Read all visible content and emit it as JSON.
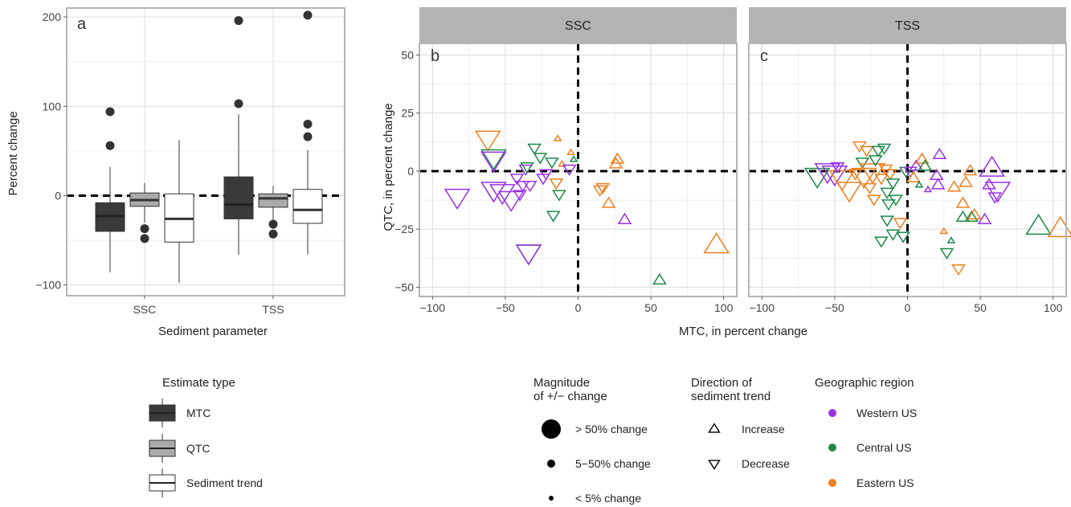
{
  "chart_data": [
    {
      "type": "box",
      "panel_letter": "a",
      "xlabel": "Sediment parameter",
      "ylabel": "Percent change",
      "categories": [
        "SSC",
        "TSS"
      ],
      "yticks": [
        -100,
        0,
        100,
        200
      ],
      "ylim": [
        -112,
        210
      ],
      "series": [
        {
          "name": "MTC",
          "boxes": [
            {
              "category": "SSC",
              "min": -86,
              "q1": -40,
              "median": -23,
              "q3": -8,
              "max": 32,
              "outliers": [
                94,
                56
              ]
            },
            {
              "category": "TSS",
              "min": -66,
              "q1": -26,
              "median": -10,
              "q3": 21,
              "max": 91,
              "outliers": [
                196,
                103
              ]
            }
          ]
        },
        {
          "name": "QTC",
          "boxes": [
            {
              "category": "SSC",
              "min": -30,
              "q1": -12,
              "median": -5,
              "q3": 3,
              "max": 14,
              "outliers": [
                -37,
                -48
              ]
            },
            {
              "category": "TSS",
              "min": -28,
              "q1": -13,
              "median": -3,
              "q3": 2,
              "max": 11,
              "outliers": [
                -32,
                -43
              ]
            }
          ]
        },
        {
          "name": "Sediment trend",
          "boxes": [
            {
              "category": "SSC",
              "min": -98,
              "q1": -52,
              "median": -26,
              "q3": 2,
              "max": 62,
              "outliers": []
            },
            {
              "category": "TSS",
              "min": -66,
              "q1": -31,
              "median": -16,
              "q3": 7,
              "max": 51,
              "outliers": [
                202,
                80,
                66
              ]
            }
          ]
        }
      ],
      "reference_line": 0,
      "fill_colors": {
        "MTC": "#3a3a3a",
        "QTC": "#aaaaaa",
        "Sediment trend": "#ffffff"
      }
    },
    {
      "type": "scatter",
      "panels": [
        {
          "letter": "b",
          "strip_title": "SSC"
        },
        {
          "letter": "c",
          "strip_title": "TSS"
        }
      ],
      "xlabel": "MTC, in percent change",
      "ylabel": "QTC, in percent change",
      "xticks": [
        -100,
        -50,
        0,
        50,
        100
      ],
      "yticks": [
        -50,
        -25,
        0,
        25,
        50
      ],
      "xlim": [
        -109,
        109
      ],
      "ylim": [
        -54,
        55
      ],
      "reference_lines": {
        "x": 0,
        "y": 0
      },
      "region_colors": {
        "Western US": "#9b30e8",
        "Central US": "#1b8a4a",
        "Eastern US": "#f07f1d"
      },
      "points": {
        "SSC": [
          {
            "x": -62,
            "y": 14,
            "dir": "down",
            "region": "Eastern US",
            "size": "large"
          },
          {
            "x": -58,
            "y": 6,
            "dir": "down",
            "region": "Central US",
            "size": "large"
          },
          {
            "x": -58,
            "y": 5,
            "dir": "down",
            "region": "Western US",
            "size": "large"
          },
          {
            "x": -83,
            "y": -11,
            "dir": "down",
            "region": "Western US",
            "size": "large"
          },
          {
            "x": -58,
            "y": -8,
            "dir": "down",
            "region": "Western US",
            "size": "large"
          },
          {
            "x": -52,
            "y": -9,
            "dir": "down",
            "region": "Western US",
            "size": "large"
          },
          {
            "x": -46,
            "y": -12,
            "dir": "down",
            "region": "Western US",
            "size": "large"
          },
          {
            "x": -40,
            "y": -10,
            "dir": "down",
            "region": "Western US",
            "size": "medium"
          },
          {
            "x": -38,
            "y": -6,
            "dir": "down",
            "region": "Western US",
            "size": "medium"
          },
          {
            "x": -42,
            "y": -3,
            "dir": "down",
            "region": "Western US",
            "size": "medium"
          },
          {
            "x": -36,
            "y": 1,
            "dir": "down",
            "region": "Western US",
            "size": "medium"
          },
          {
            "x": -35,
            "y": 2,
            "dir": "down",
            "region": "Central US",
            "size": "medium"
          },
          {
            "x": -34,
            "y": -35,
            "dir": "down",
            "region": "Central US",
            "size": "large"
          },
          {
            "x": -34,
            "y": -35,
            "dir": "down",
            "region": "Western US",
            "size": "large"
          },
          {
            "x": -33,
            "y": -6,
            "dir": "down",
            "region": "Western US",
            "size": "medium"
          },
          {
            "x": -30,
            "y": 10,
            "dir": "down",
            "region": "Central US",
            "size": "medium"
          },
          {
            "x": -26,
            "y": 6,
            "dir": "down",
            "region": "Central US",
            "size": "medium"
          },
          {
            "x": -24,
            "y": -3,
            "dir": "down",
            "region": "Western US",
            "size": "medium"
          },
          {
            "x": -22,
            "y": -1,
            "dir": "down",
            "region": "Western US",
            "size": "medium"
          },
          {
            "x": -18,
            "y": 4,
            "dir": "down",
            "region": "Central US",
            "size": "medium"
          },
          {
            "x": -17,
            "y": -19,
            "dir": "down",
            "region": "Central US",
            "size": "medium"
          },
          {
            "x": -15,
            "y": -5,
            "dir": "down",
            "region": "Eastern US",
            "size": "medium"
          },
          {
            "x": -13,
            "y": -10,
            "dir": "down",
            "region": "Central US",
            "size": "medium"
          },
          {
            "x": -14,
            "y": 14,
            "dir": "up",
            "region": "Eastern US",
            "size": "small"
          },
          {
            "x": -11,
            "y": 3,
            "dir": "up",
            "region": "Eastern US",
            "size": "small"
          },
          {
            "x": -6,
            "y": 1,
            "dir": "down",
            "region": "Western US",
            "size": "medium"
          },
          {
            "x": -5,
            "y": 8,
            "dir": "up",
            "region": "Eastern US",
            "size": "small"
          },
          {
            "x": -3,
            "y": 5,
            "dir": "up",
            "region": "Central US",
            "size": "small"
          },
          {
            "x": 15,
            "y": -8,
            "dir": "down",
            "region": "Eastern US",
            "size": "medium"
          },
          {
            "x": 17,
            "y": -7,
            "dir": "down",
            "region": "Eastern US",
            "size": "medium"
          },
          {
            "x": 21,
            "y": -14,
            "dir": "up",
            "region": "Eastern US",
            "size": "medium"
          },
          {
            "x": 26,
            "y": 3,
            "dir": "up",
            "region": "Eastern US",
            "size": "medium"
          },
          {
            "x": 27,
            "y": 5,
            "dir": "up",
            "region": "Eastern US",
            "size": "medium"
          },
          {
            "x": 32,
            "y": -21,
            "dir": "up",
            "region": "Western US",
            "size": "medium"
          },
          {
            "x": 56,
            "y": -47,
            "dir": "up",
            "region": "Central US",
            "size": "medium"
          },
          {
            "x": 95,
            "y": -32,
            "dir": "up",
            "region": "Eastern US",
            "size": "large"
          }
        ],
        "TSS": [
          {
            "x": -62,
            "y": -2,
            "dir": "down",
            "region": "Central US",
            "size": "large"
          },
          {
            "x": -55,
            "y": 0,
            "dir": "down",
            "region": "Western US",
            "size": "large"
          },
          {
            "x": -50,
            "y": -1,
            "dir": "down",
            "region": "Western US",
            "size": "large"
          },
          {
            "x": -45,
            "y": -3,
            "dir": "down",
            "region": "Eastern US",
            "size": "large"
          },
          {
            "x": -48,
            "y": 2,
            "dir": "down",
            "region": "Western US",
            "size": "medium"
          },
          {
            "x": -40,
            "y": -8,
            "dir": "down",
            "region": "Eastern US",
            "size": "large"
          },
          {
            "x": -36,
            "y": -1,
            "dir": "down",
            "region": "Eastern US",
            "size": "medium"
          },
          {
            "x": -33,
            "y": 11,
            "dir": "down",
            "region": "Eastern US",
            "size": "medium"
          },
          {
            "x": -31,
            "y": 4,
            "dir": "down",
            "region": "Central US",
            "size": "medium"
          },
          {
            "x": -30,
            "y": -2,
            "dir": "down",
            "region": "Eastern US",
            "size": "large"
          },
          {
            "x": -28,
            "y": 9,
            "dir": "down",
            "region": "Eastern US",
            "size": "medium"
          },
          {
            "x": -26,
            "y": -7,
            "dir": "down",
            "region": "Eastern US",
            "size": "medium"
          },
          {
            "x": -24,
            "y": 0,
            "dir": "down",
            "region": "Eastern US",
            "size": "large"
          },
          {
            "x": -23,
            "y": -12,
            "dir": "down",
            "region": "Eastern US",
            "size": "medium"
          },
          {
            "x": -22,
            "y": 5,
            "dir": "down",
            "region": "Central US",
            "size": "medium"
          },
          {
            "x": -20,
            "y": 9,
            "dir": "down",
            "region": "Central US",
            "size": "medium"
          },
          {
            "x": -18,
            "y": -3,
            "dir": "down",
            "region": "Eastern US",
            "size": "medium"
          },
          {
            "x": -16,
            "y": 10,
            "dir": "down",
            "region": "Central US",
            "size": "medium"
          },
          {
            "x": -15,
            "y": 1,
            "dir": "down",
            "region": "Eastern US",
            "size": "medium"
          },
          {
            "x": -14,
            "y": -9,
            "dir": "down",
            "region": "Central US",
            "size": "medium"
          },
          {
            "x": -13,
            "y": -14,
            "dir": "down",
            "region": "Central US",
            "size": "medium"
          },
          {
            "x": -12,
            "y": -1,
            "dir": "down",
            "region": "Eastern US",
            "size": "medium"
          },
          {
            "x": -10,
            "y": -5,
            "dir": "down",
            "region": "Central US",
            "size": "medium"
          },
          {
            "x": -8,
            "y": -12,
            "dir": "down",
            "region": "Central US",
            "size": "medium"
          },
          {
            "x": -14,
            "y": -21,
            "dir": "down",
            "region": "Central US",
            "size": "medium"
          },
          {
            "x": -10,
            "y": -27,
            "dir": "down",
            "region": "Central US",
            "size": "medium"
          },
          {
            "x": -18,
            "y": -30,
            "dir": "down",
            "region": "Central US",
            "size": "medium"
          },
          {
            "x": -5,
            "y": -22,
            "dir": "down",
            "region": "Eastern US",
            "size": "medium"
          },
          {
            "x": -3,
            "y": -28,
            "dir": "down",
            "region": "Central US",
            "size": "medium"
          },
          {
            "x": -1,
            "y": 0,
            "dir": "down",
            "region": "Central US",
            "size": "medium"
          },
          {
            "x": 2,
            "y": 0,
            "dir": "down",
            "region": "Western US",
            "size": "medium"
          },
          {
            "x": 4,
            "y": -3,
            "dir": "up",
            "region": "Eastern US",
            "size": "medium"
          },
          {
            "x": 6,
            "y": 2,
            "dir": "up",
            "region": "Western US",
            "size": "medium"
          },
          {
            "x": 8,
            "y": -6,
            "dir": "up",
            "region": "Central US",
            "size": "small"
          },
          {
            "x": 10,
            "y": 5,
            "dir": "up",
            "region": "Eastern US",
            "size": "medium"
          },
          {
            "x": 12,
            "y": 2,
            "dir": "up",
            "region": "Central US",
            "size": "medium"
          },
          {
            "x": 14,
            "y": -8,
            "dir": "up",
            "region": "Western US",
            "size": "small"
          },
          {
            "x": 20,
            "y": -2,
            "dir": "up",
            "region": "Western US",
            "size": "medium"
          },
          {
            "x": 21,
            "y": -6,
            "dir": "up",
            "region": "Western US",
            "size": "medium"
          },
          {
            "x": 22,
            "y": 7,
            "dir": "up",
            "region": "Western US",
            "size": "medium"
          },
          {
            "x": 25,
            "y": -26,
            "dir": "up",
            "region": "Eastern US",
            "size": "small"
          },
          {
            "x": 27,
            "y": -35,
            "dir": "down",
            "region": "Central US",
            "size": "medium"
          },
          {
            "x": 30,
            "y": -30,
            "dir": "up",
            "region": "Central US",
            "size": "small"
          },
          {
            "x": 32,
            "y": -7,
            "dir": "up",
            "region": "Eastern US",
            "size": "medium"
          },
          {
            "x": 35,
            "y": -42,
            "dir": "down",
            "region": "Eastern US",
            "size": "medium"
          },
          {
            "x": 38,
            "y": -20,
            "dir": "up",
            "region": "Central US",
            "size": "medium"
          },
          {
            "x": 38,
            "y": -14,
            "dir": "up",
            "region": "Eastern US",
            "size": "medium"
          },
          {
            "x": 40,
            "y": -5,
            "dir": "up",
            "region": "Eastern US",
            "size": "medium"
          },
          {
            "x": 43,
            "y": 0,
            "dir": "up",
            "region": "Eastern US",
            "size": "medium"
          },
          {
            "x": 44,
            "y": -20,
            "dir": "up",
            "region": "Central US",
            "size": "medium"
          },
          {
            "x": 46,
            "y": -19,
            "dir": "up",
            "region": "Eastern US",
            "size": "medium"
          },
          {
            "x": 53,
            "y": -21,
            "dir": "up",
            "region": "Western US",
            "size": "medium"
          },
          {
            "x": 56,
            "y": -6,
            "dir": "up",
            "region": "Western US",
            "size": "medium"
          },
          {
            "x": 58,
            "y": 1,
            "dir": "up",
            "region": "Western US",
            "size": "large"
          },
          {
            "x": 60,
            "y": -11,
            "dir": "down",
            "region": "Western US",
            "size": "medium"
          },
          {
            "x": 62,
            "y": -8,
            "dir": "down",
            "region": "Western US",
            "size": "large"
          },
          {
            "x": 90,
            "y": -24,
            "dir": "up",
            "region": "Central US",
            "size": "large"
          },
          {
            "x": 105,
            "y": -25,
            "dir": "up",
            "region": "Eastern US",
            "size": "large"
          }
        ]
      }
    }
  ],
  "legends": {
    "estimate_type": {
      "title": "Estimate type",
      "items": [
        "MTC",
        "QTC",
        "Sediment trend"
      ]
    },
    "magnitude": {
      "title_lines": [
        "Magnitude",
        "of +/− change"
      ],
      "items": [
        "> 50% change",
        "5−50% change",
        "< 5% change"
      ]
    },
    "direction": {
      "title_lines": [
        "Direction of",
        "sediment trend"
      ],
      "items": [
        "Increase",
        "Decrease"
      ]
    },
    "region": {
      "title": "Geographic region",
      "items": [
        "Western US",
        "Central US",
        "Eastern US"
      ]
    }
  }
}
